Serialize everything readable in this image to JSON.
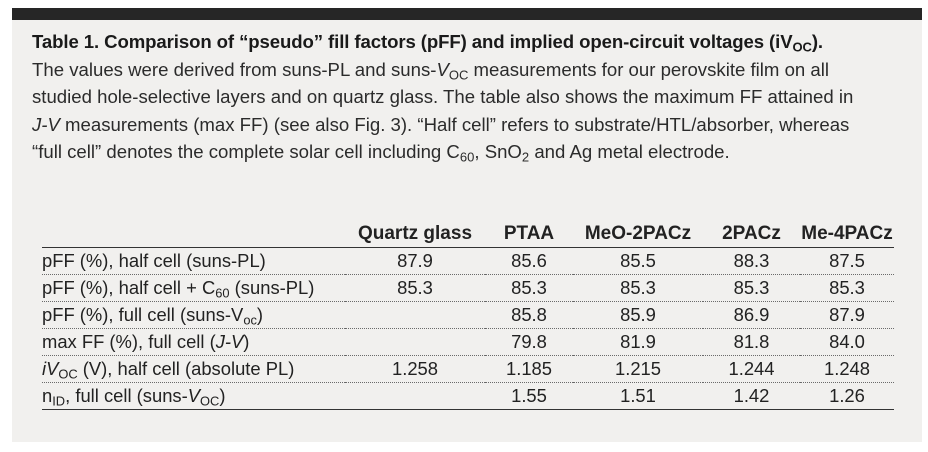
{
  "caption": {
    "title": "Table 1. Comparison of “pseudo” fill factors (pFF) and implied open-circuit voltages (iV",
    "title_sub": "OC",
    "title_end": ").",
    "line1_a": "The values were derived from suns-PL and suns-",
    "line1_v": "V",
    "line1_sub": "OC",
    "line1_b": " measurements for our perovskite film on all",
    "line2": "studied hole-selective layers and on quartz glass. The table also shows the maximum FF attained in",
    "line3_jv": "J-V",
    "line3_b": " measurements (max FF) (see also Fig. 3). “Half cell” refers to substrate/HTL/absorber, whereas",
    "line4_a": "“full cell” denotes the complete solar cell including C",
    "line4_sub1": "60",
    "line4_b": ", SnO",
    "line4_sub2": "2",
    "line4_c": " and Ag metal electrode."
  },
  "table": {
    "columns": [
      "",
      "Quartz glass",
      "PTAA",
      "MeO-2PACz",
      "2PACz",
      "Me-4PACz"
    ],
    "rows": [
      {
        "label_a": "pFF (%), half cell (suns-PL)",
        "values": [
          "87.9",
          "85.6",
          "85.5",
          "88.3",
          "87.5"
        ]
      },
      {
        "label_a": "pFF (%), half cell + C",
        "label_sub": "60",
        "label_b": " (suns-PL)",
        "values": [
          "85.3",
          "85.3",
          "85.3",
          "85.3",
          "85.3"
        ]
      },
      {
        "label_a": "pFF (%), full cell (suns-V",
        "label_sub": "oc",
        "label_b": ")",
        "values": [
          "",
          "85.8",
          "85.9",
          "86.9",
          "87.9"
        ]
      },
      {
        "label_a": "max FF (%), full cell (",
        "label_it": "J-V",
        "label_b": ")",
        "values": [
          "",
          "79.8",
          "81.9",
          "81.8",
          "84.0"
        ]
      },
      {
        "label_it": "iV",
        "label_sub": "OC",
        "label_b": " (V), half cell (absolute PL)",
        "values": [
          "1.258",
          "1.185",
          "1.215",
          "1.244",
          "1.248"
        ]
      },
      {
        "label_a": "n",
        "label_sub": "ID",
        "label_b": ", full cell (suns-",
        "label_it": "V",
        "label_sub2": "OC",
        "label_c": ")",
        "values": [
          "",
          "1.55",
          "1.51",
          "1.42",
          "1.26"
        ]
      }
    ]
  }
}
